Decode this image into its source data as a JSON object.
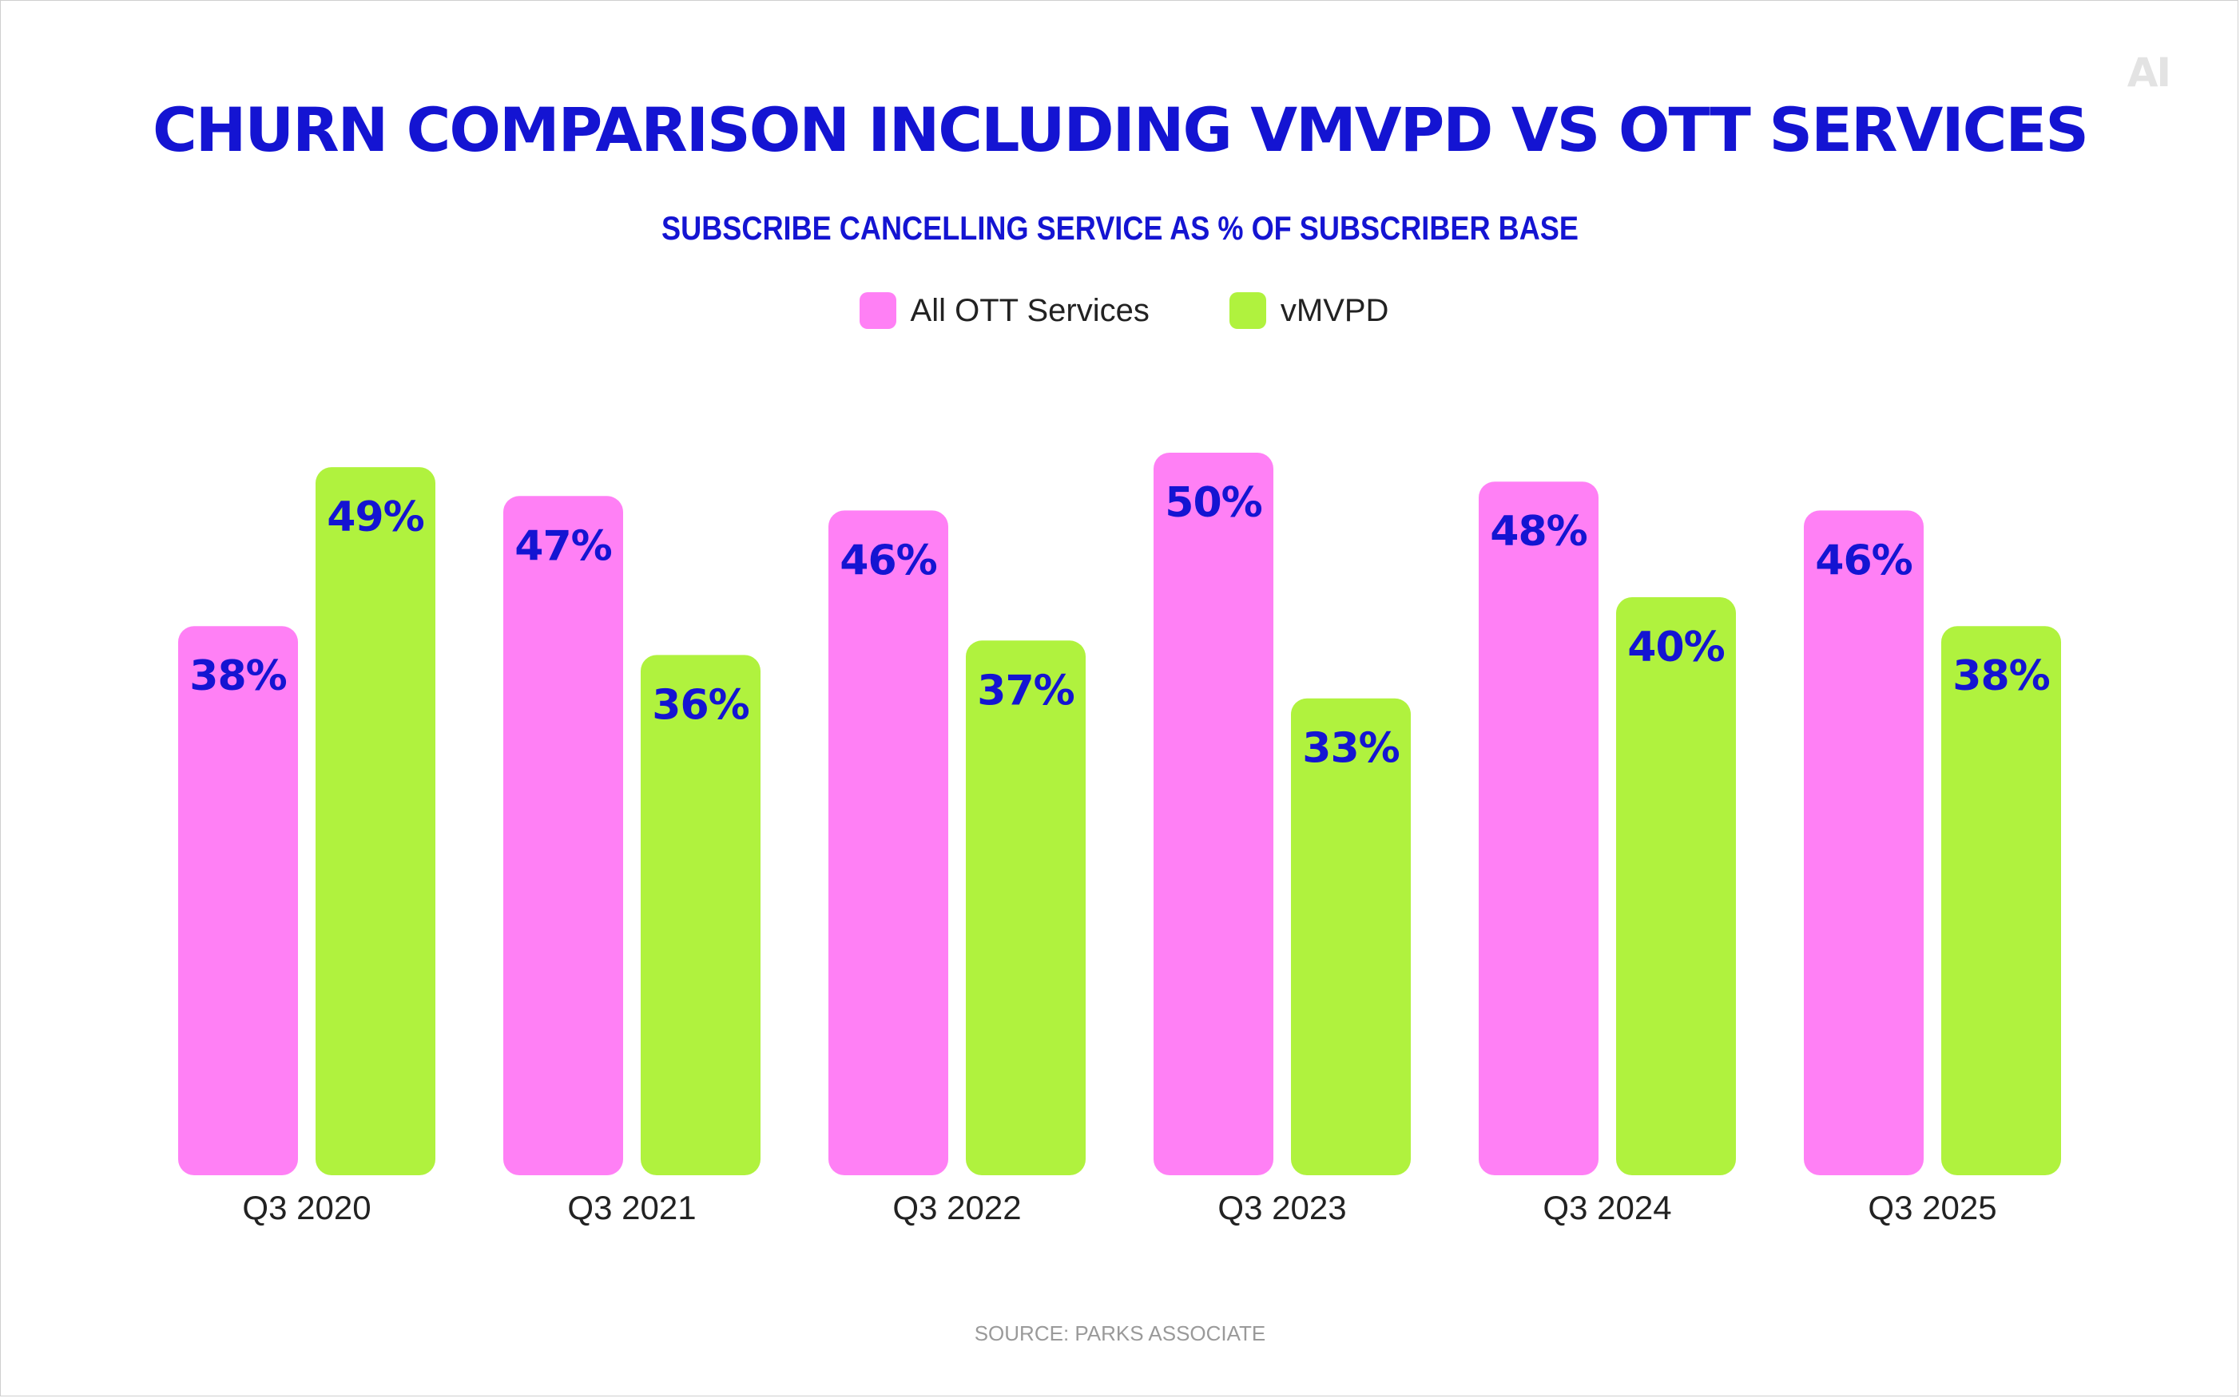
{
  "logo_text": "AI",
  "chart_data": {
    "type": "bar",
    "title": "CHURN COMPARISON INCLUDING VMVPD VS OTT SERVICES",
    "subtitle": "SUBSCRIBE CANCELLING SERVICE AS % OF SUBSCRIBER BASE",
    "categories": [
      "Q3 2020",
      "Q3 2021",
      "Q3 2022",
      "Q3 2023",
      "Q3 2024",
      "Q3 2025"
    ],
    "series": [
      {
        "name": "All OTT Services",
        "color": "#ff80f5",
        "values": [
          38,
          47,
          46,
          50,
          48,
          46
        ]
      },
      {
        "name": "vMVPD",
        "color": "#b0f23e",
        "values": [
          49,
          36,
          37,
          33,
          40,
          38
        ]
      }
    ],
    "value_suffix": "%",
    "ylim": [
      0,
      100
    ],
    "grid": false,
    "legend_position": "top-center"
  },
  "source": "SOURCE: PARKS ASSOCIATE"
}
